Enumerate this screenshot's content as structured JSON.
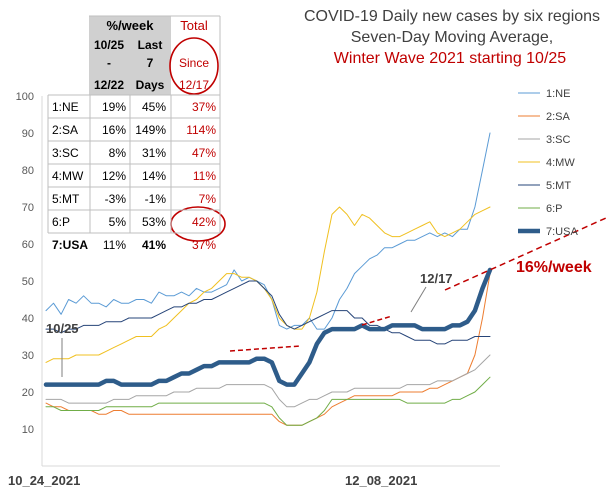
{
  "chart_data": {
    "type": "line",
    "title": [
      {
        "text": "COVID-19 Daily new cases by six regions",
        "color": "#404040"
      },
      {
        "text": "Seven-Day Moving Average,",
        "color": "#404040"
      },
      {
        "text": "Winter Wave 2021 starting 10/25",
        "color": "#c00000"
      }
    ],
    "x_start_label": "10_24_2021",
    "x_mid_label": "12_08_2021",
    "ylim": [
      0,
      100
    ],
    "yticks": [
      10,
      20,
      30,
      40,
      50,
      60,
      70,
      80,
      90,
      100
    ],
    "grid": false,
    "legend_position": "right",
    "n_points": 60,
    "series": [
      {
        "name": "1:NE",
        "color": "#5b9bd5",
        "width": 1,
        "values": [
          42,
          44,
          41,
          45,
          44,
          46,
          44,
          44,
          43,
          45,
          44,
          44,
          45,
          45,
          44,
          47,
          46,
          46,
          47,
          46,
          48,
          47,
          47,
          48,
          49,
          53,
          50,
          51,
          50,
          49,
          45,
          38,
          37,
          38,
          38,
          40,
          37,
          37,
          40,
          45,
          48,
          52,
          54,
          56,
          57,
          59,
          59,
          60,
          61,
          61,
          62,
          63,
          62,
          63,
          62,
          64,
          64,
          70,
          80,
          90
        ]
      },
      {
        "name": "2:SA",
        "color": "#ed7d31",
        "width": 1,
        "values": [
          17,
          16,
          16,
          15,
          15,
          15,
          15,
          14,
          14,
          15,
          15,
          14,
          14,
          14,
          14,
          14,
          14,
          14,
          14,
          14,
          14,
          14,
          14,
          14,
          14,
          14,
          14,
          14,
          14,
          14,
          14,
          12,
          11,
          11,
          11,
          12,
          13,
          14,
          16,
          17,
          18,
          19,
          19,
          19,
          19,
          19,
          19,
          20,
          20,
          20,
          20,
          21,
          21,
          22,
          23,
          24,
          25,
          30,
          40,
          52
        ]
      },
      {
        "name": "3:SC",
        "color": "#a5a5a5",
        "width": 1,
        "values": [
          18,
          18,
          18,
          17,
          17,
          17,
          17,
          17,
          17,
          18,
          18,
          18,
          19,
          19,
          19,
          19,
          19,
          20,
          20,
          20,
          21,
          21,
          21,
          21,
          22,
          22,
          22,
          22,
          22,
          22,
          21,
          18,
          16,
          16,
          17,
          18,
          18,
          19,
          20,
          20,
          20,
          21,
          21,
          21,
          21,
          21,
          21,
          21,
          22,
          22,
          22,
          22,
          23,
          23,
          23,
          24,
          25,
          26,
          28,
          30
        ]
      },
      {
        "name": "4:MW",
        "color": "#f0c020",
        "width": 1,
        "values": [
          28,
          29,
          29,
          29,
          30,
          30,
          30,
          30,
          31,
          32,
          33,
          34,
          35,
          35,
          35,
          37,
          38,
          40,
          42,
          44,
          45,
          47,
          48,
          50,
          52,
          52,
          51,
          51,
          50,
          48,
          45,
          40,
          38,
          37,
          37,
          40,
          47,
          58,
          68,
          70,
          68,
          65,
          68,
          67,
          65,
          63,
          62,
          62,
          63,
          64,
          65,
          66,
          63,
          62,
          63,
          64,
          66,
          68,
          69,
          70
        ]
      },
      {
        "name": "5:MT",
        "color": "#264478",
        "width": 1,
        "values": [
          37,
          37,
          36,
          37,
          37,
          38,
          38,
          38,
          39,
          39,
          39,
          40,
          40,
          40,
          40,
          41,
          42,
          43,
          43,
          44,
          44,
          45,
          45,
          46,
          47,
          48,
          49,
          50,
          50,
          48,
          46,
          41,
          38,
          37,
          38,
          39,
          40,
          41,
          42,
          42,
          42,
          40,
          40,
          38,
          38,
          37,
          36,
          36,
          35,
          34,
          34,
          34,
          33,
          33,
          34,
          34,
          34,
          35,
          35,
          35
        ]
      },
      {
        "name": "6:P",
        "color": "#70ad47",
        "width": 1,
        "values": [
          16,
          16,
          15,
          15,
          15,
          15,
          15,
          15,
          16,
          16,
          16,
          16,
          16,
          16,
          16,
          17,
          17,
          17,
          17,
          17,
          17,
          17,
          17,
          17,
          17,
          17,
          17,
          17,
          17,
          17,
          16,
          13,
          11,
          11,
          11,
          12,
          13,
          15,
          18,
          18,
          18,
          18,
          18,
          18,
          18,
          18,
          18,
          18,
          17,
          17,
          17,
          17,
          17,
          17,
          18,
          18,
          19,
          20,
          22,
          24
        ]
      },
      {
        "name": "7:USA",
        "color": "#2e5c8a",
        "width": 4.5,
        "values": [
          22,
          22,
          22,
          22,
          22,
          22,
          22,
          22,
          23,
          23,
          22,
          22,
          22,
          22,
          22,
          23,
          23,
          24,
          25,
          25,
          26,
          27,
          27,
          28,
          28,
          28,
          28,
          28,
          29,
          29,
          28,
          23,
          22,
          22,
          25,
          28,
          33,
          36,
          37,
          37,
          37,
          37,
          38,
          37,
          37,
          37,
          38,
          38,
          38,
          38,
          37,
          37,
          37,
          37,
          38,
          38,
          39,
          42,
          48,
          53
        ]
      }
    ],
    "table": {
      "header_row1": [
        "%/week",
        "Total"
      ],
      "header_row2": [
        "10/25",
        "Last",
        "Since"
      ],
      "header_row3": [
        "-",
        "7",
        "12/17"
      ],
      "header_row4": [
        "12/22",
        "Days"
      ],
      "rows": [
        {
          "region": "1:NE",
          "c1": "19%",
          "c2": "45%",
          "c3": "37%"
        },
        {
          "region": "2:SA",
          "c1": "16%",
          "c2": "149%",
          "c3": "114%"
        },
        {
          "region": "3:SC",
          "c1": "8%",
          "c2": "31%",
          "c3": "47%"
        },
        {
          "region": "4:MW",
          "c1": "12%",
          "c2": "14%",
          "c3": "11%"
        },
        {
          "region": "5:MT",
          "c1": "-3%",
          "c2": "-1%",
          "c3": "7%"
        },
        {
          "region": "6:P",
          "c1": "5%",
          "c2": "53%",
          "c3": "42%"
        },
        {
          "region": "7:USA",
          "c1": "11%",
          "c2": "41%",
          "c3": "37%"
        }
      ]
    },
    "annotations": {
      "start": "10/25",
      "mid": "12/17",
      "rate": "16%/week"
    }
  }
}
